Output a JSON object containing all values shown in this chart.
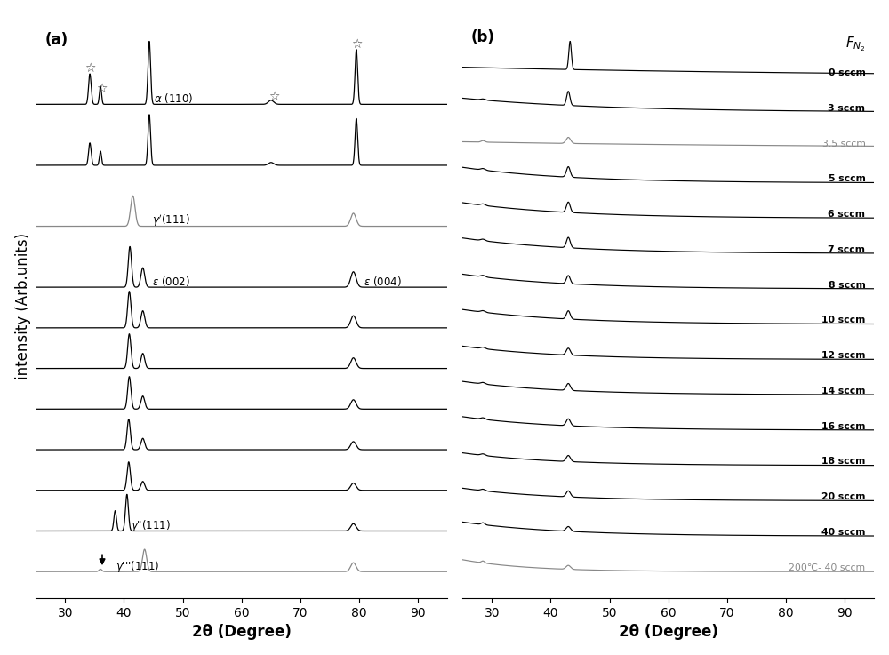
{
  "panel_a_label": "(a)",
  "panel_b_label": "(b)",
  "xlabel": "2θ (Degree)",
  "ylabel": "intensity (Arb.units)",
  "xticks": [
    30,
    40,
    50,
    60,
    70,
    80,
    90
  ],
  "background_color": "#ffffff",
  "panel_b_labels": [
    "0 sccm",
    "3 sccm",
    "3.5 sccm",
    "5 sccm",
    "6 sccm",
    "7 sccm",
    "8 sccm",
    "10 sccm",
    "12 sccm",
    "14 sccm",
    "16 sccm",
    "18 sccm",
    "20 sccm",
    "40 sccm",
    "200℃- 40 sccm"
  ],
  "panel_b_colors": [
    "#000000",
    "#000000",
    "#888888",
    "#000000",
    "#000000",
    "#000000",
    "#000000",
    "#000000",
    "#000000",
    "#000000",
    "#000000",
    "#000000",
    "#000000",
    "#000000",
    "#888888"
  ]
}
